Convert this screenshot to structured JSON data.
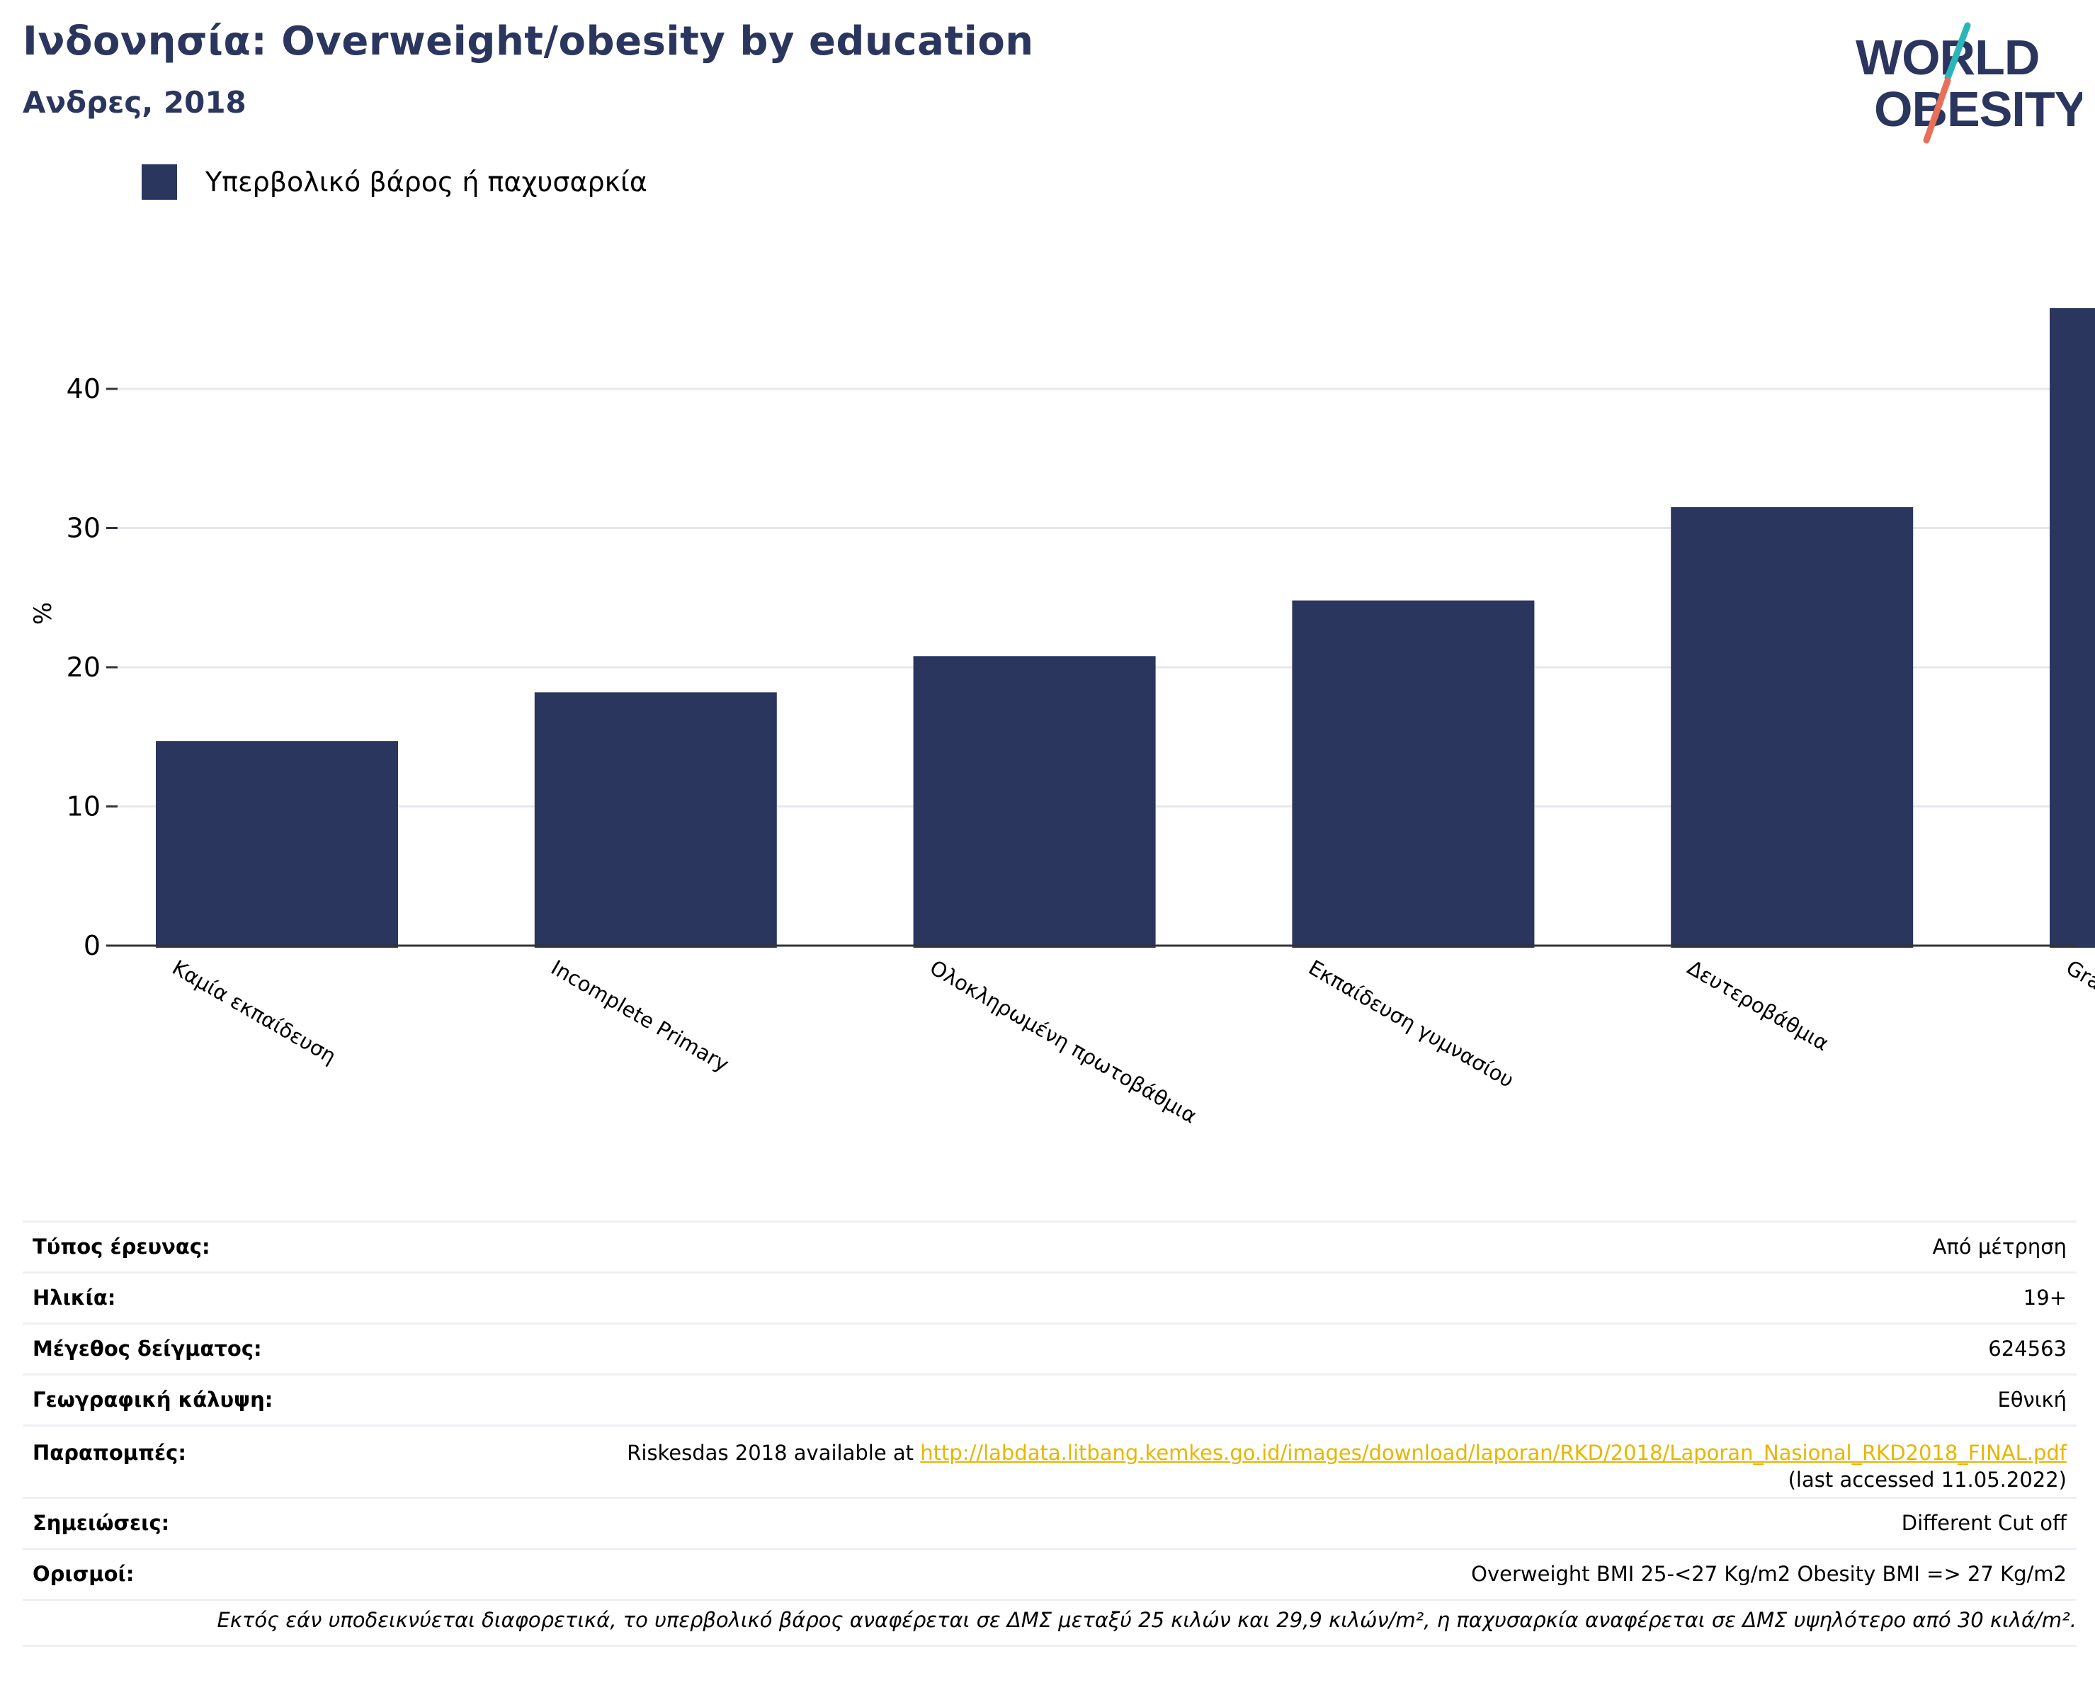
{
  "header": {
    "title": "Ινδονησία: Overweight/obesity by education",
    "subtitle": "Ανδρες, 2018"
  },
  "logo": {
    "line1": "WORLD",
    "line2": "OBESITY"
  },
  "legend": {
    "label": "Υπερβολικό βάρος ή παχυσαρκία"
  },
  "chart_data": {
    "type": "bar",
    "title": "Ινδονησία: Overweight/obesity by education",
    "subtitle": "Ανδρες, 2018",
    "ylabel": "%",
    "xlabel": "",
    "ylim": [
      0,
      48
    ],
    "yticks": [
      0,
      10,
      20,
      30,
      40
    ],
    "grid": true,
    "legend_position": "top-left",
    "categories": [
      "Καμία εκπαίδευση",
      "Incomplete Primary",
      "Ολοκληρωμένη πρωτοβάθμια",
      "Εκπαίδευση γυμνασίου",
      "Δευτεροβάθμια",
      "Graduate"
    ],
    "series": [
      {
        "name": "Υπερβολικό βάρος ή παχυσαρκία",
        "color": "#2b365f",
        "values": [
          14.7,
          18.2,
          20.8,
          24.8,
          31.5,
          45.8
        ]
      }
    ]
  },
  "info": {
    "rows": [
      {
        "key": "Τύπος έρευνας:",
        "value": "Από μέτρηση"
      },
      {
        "key": "Ηλικία:",
        "value": "19+"
      },
      {
        "key": "Μέγεθος δείγματος:",
        "value": "624563"
      },
      {
        "key": "Γεωγραφική κάλυψη:",
        "value": "Εθνική"
      }
    ],
    "references": {
      "key": "Παραπομπές:",
      "prefix": "Riskesdas 2018 available at ",
      "link": "http://labdata.litbang.kemkes.go.id/images/download/laporan/RKD/2018/Laporan_Nasional_RKD2018_FINAL.pdf",
      "suffix": "(last accessed 11.05.2022)"
    },
    "notes": {
      "key": "Σημειώσεις:",
      "value": "Different Cut off"
    },
    "definitions": {
      "key": "Ορισμοί:",
      "value": "Overweight BMI 25-<27 Kg/m2 Obesity BMI => 27 Kg/m2"
    }
  },
  "footnote": "Εκτός εάν υποδεικνύεται διαφορετικά, το υπερβολικό βάρος αναφέρεται σε ΔΜΣ μεταξύ 25 κιλών και 29,9 κιλών/m², η παχυσαρκία αναφέρεται σε ΔΜΣ υψηλότερο από 30 κιλά/m².",
  "colors": {
    "bar": "#2b365f",
    "title": "#2b365f",
    "grid": "#e5e8ee",
    "link": "#e8b500",
    "logo_teal": "#2bb5b8",
    "logo_coral": "#e8705a"
  }
}
